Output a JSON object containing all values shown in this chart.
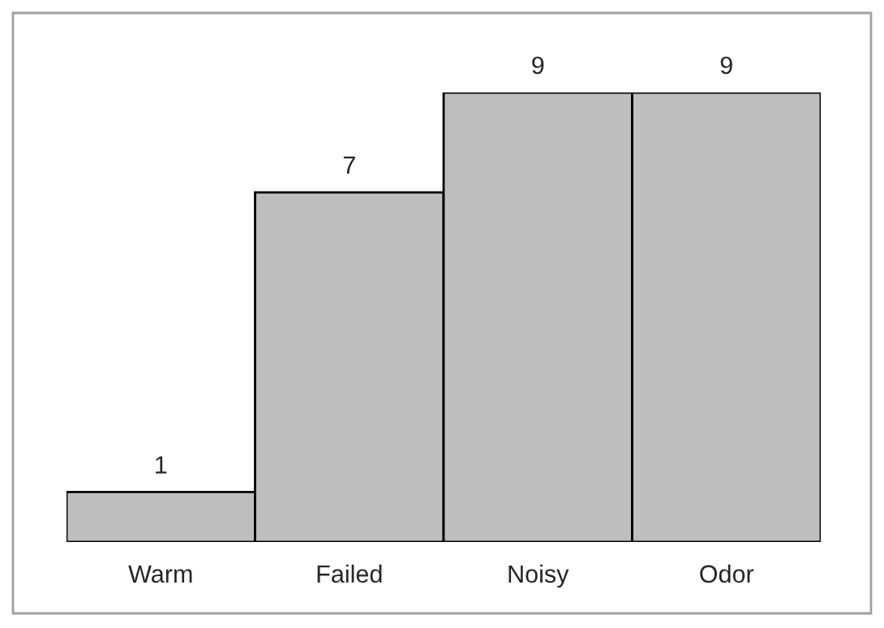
{
  "chart_data": {
    "type": "bar",
    "categories": [
      "Warm",
      "Failed",
      "Noisy",
      "Odor"
    ],
    "values": [
      1,
      7,
      9,
      9
    ],
    "color": "#bebebe",
    "data_labels": true
  }
}
